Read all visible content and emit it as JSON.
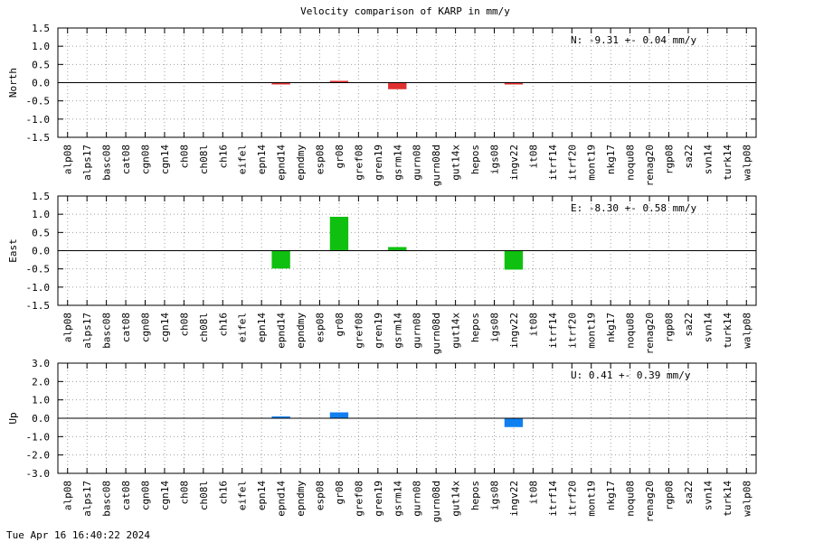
{
  "figure_title": "Velocity comparison of KARP in mm/y",
  "timestamp": "Tue Apr 16 16:40:22 2024",
  "chart_data": [
    {
      "type": "bar",
      "ylabel": "North",
      "color": "#e03030",
      "ylim": [
        -1.5,
        1.5
      ],
      "yticks": [
        "-1.5",
        "-1.0",
        "-0.5",
        "0.0",
        "0.5",
        "1.0",
        "1.5"
      ],
      "grid": true,
      "annotation": "N:  -9.31 +-  0.04 mm/y",
      "categories": [
        "alp08",
        "alps17",
        "basc08",
        "cat08",
        "cgn08",
        "cgn14",
        "ch08",
        "ch08l",
        "ch16",
        "eifel",
        "epn14",
        "epnd14",
        "epndmy",
        "esp08",
        "gr08",
        "gref08",
        "gren19",
        "gsrm14",
        "gurn08",
        "gurn08d",
        "gut14x",
        "hepos",
        "igs08",
        "ingv22",
        "it08",
        "itrf14",
        "itrf20",
        "mont19",
        "nkg17",
        "noqu08",
        "renag20",
        "rgp08",
        "sa22",
        "svn14",
        "turk14",
        "walp08"
      ],
      "values": [
        0,
        0,
        0,
        0,
        0,
        0,
        0,
        0,
        0,
        0,
        0,
        -0.03,
        0,
        0,
        0.05,
        0,
        0,
        -0.18,
        0,
        0,
        0,
        0,
        0,
        -0.04,
        0,
        0,
        0,
        0,
        0,
        0,
        0,
        0,
        0,
        0,
        0,
        0
      ]
    },
    {
      "type": "bar",
      "ylabel": "East",
      "color": "#10c010",
      "ylim": [
        -1.5,
        1.5
      ],
      "yticks": [
        "-1.5",
        "-1.0",
        "-0.5",
        "0.0",
        "0.5",
        "1.0",
        "1.5"
      ],
      "grid": true,
      "annotation": "E:  -8.30 +-  0.58 mm/y",
      "categories": [
        "alp08",
        "alps17",
        "basc08",
        "cat08",
        "cgn08",
        "cgn14",
        "ch08",
        "ch08l",
        "ch16",
        "eifel",
        "epn14",
        "epnd14",
        "epndmy",
        "esp08",
        "gr08",
        "gref08",
        "gren19",
        "gsrm14",
        "gurn08",
        "gurn08d",
        "gut14x",
        "hepos",
        "igs08",
        "ingv22",
        "it08",
        "itrf14",
        "itrf20",
        "mont19",
        "nkg17",
        "noqu08",
        "renag20",
        "rgp08",
        "sa22",
        "svn14",
        "turk14",
        "walp08"
      ],
      "values": [
        0,
        0,
        0,
        0,
        0,
        0,
        0,
        0,
        0,
        0,
        0,
        -0.49,
        0,
        0,
        0.93,
        0,
        0,
        0.1,
        0,
        0,
        0,
        0,
        0,
        -0.52,
        0,
        0,
        0,
        0,
        0,
        0,
        0,
        0,
        0,
        0,
        0,
        0
      ]
    },
    {
      "type": "bar",
      "ylabel": "Up",
      "color": "#1080f0",
      "ylim": [
        -3.0,
        3.0
      ],
      "yticks": [
        "-3.0",
        "-2.0",
        "-1.0",
        "0.0",
        "1.0",
        "2.0",
        "3.0"
      ],
      "grid": true,
      "annotation": "U:   0.41 +-  0.39 mm/y",
      "categories": [
        "alp08",
        "alps17",
        "basc08",
        "cat08",
        "cgn08",
        "cgn14",
        "ch08",
        "ch08l",
        "ch16",
        "eifel",
        "epn14",
        "epnd14",
        "epndmy",
        "esp08",
        "gr08",
        "gref08",
        "gren19",
        "gsrm14",
        "gurn08",
        "gurn08d",
        "gut14x",
        "hepos",
        "igs08",
        "ingv22",
        "it08",
        "itrf14",
        "itrf20",
        "mont19",
        "nkg17",
        "noqu08",
        "renag20",
        "rgp08",
        "sa22",
        "svn14",
        "turk14",
        "walp08"
      ],
      "values": [
        0,
        0,
        0,
        0,
        0,
        0,
        0,
        0,
        0,
        0,
        0,
        0.1,
        0,
        0,
        0.32,
        0,
        0,
        0,
        0,
        0,
        0,
        0,
        0,
        -0.48,
        0,
        0,
        0,
        0,
        0,
        0,
        0,
        0,
        0,
        0,
        0,
        0
      ]
    }
  ]
}
